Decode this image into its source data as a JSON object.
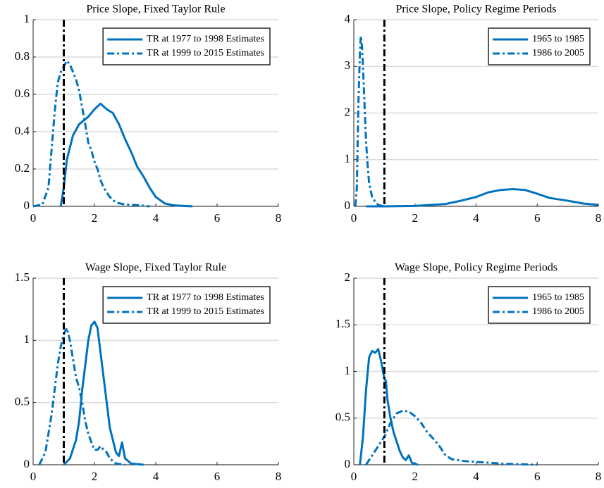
{
  "chart_data": [
    {
      "type": "line",
      "title": "Price Slope, Fixed Taylor Rule",
      "xlim": [
        0,
        8
      ],
      "xticks": [
        0,
        2,
        4,
        6,
        8
      ],
      "ylim": [
        0,
        1
      ],
      "yticks": [
        0,
        0.2,
        0.4,
        0.6,
        0.8,
        1
      ],
      "grid": "y",
      "legend": "upper right",
      "vline": 1,
      "vline_color": "#000000",
      "series": [
        {
          "name": "TR at 1977 to 1998 Estimates",
          "color": "#0072bd",
          "dash": "solid",
          "x": [
            0.9,
            1.0,
            1.1,
            1.3,
            1.5,
            1.8,
            2.0,
            2.2,
            2.4,
            2.6,
            2.8,
            3.0,
            3.2,
            3.4,
            3.6,
            3.8,
            4.0,
            4.3,
            4.6,
            5.2
          ],
          "values": [
            0,
            0.1,
            0.25,
            0.38,
            0.44,
            0.48,
            0.52,
            0.55,
            0.52,
            0.5,
            0.44,
            0.36,
            0.29,
            0.21,
            0.16,
            0.1,
            0.05,
            0.015,
            0.005,
            0
          ]
        },
        {
          "name": "TR at 1999 to 2015 Estimates",
          "color": "#0072bd",
          "dash": "dashdot",
          "x": [
            0,
            0.3,
            0.5,
            0.6,
            0.7,
            0.8,
            0.9,
            1.0,
            1.1,
            1.2,
            1.3,
            1.4,
            1.5,
            1.6,
            1.7,
            1.8,
            1.9,
            2.0,
            2.1,
            2.2,
            2.3,
            2.5,
            2.7,
            3.0,
            3.5,
            3.8
          ],
          "values": [
            0,
            0.01,
            0.1,
            0.3,
            0.5,
            0.66,
            0.72,
            0.75,
            0.78,
            0.76,
            0.72,
            0.68,
            0.62,
            0.53,
            0.44,
            0.34,
            0.3,
            0.24,
            0.2,
            0.14,
            0.1,
            0.05,
            0.02,
            0.01,
            0.005,
            0
          ]
        }
      ]
    },
    {
      "type": "line",
      "title": "Price Slope, Policy Regime Periods",
      "xlim": [
        0,
        8
      ],
      "xticks": [
        0,
        2,
        4,
        6,
        8
      ],
      "ylim": [
        0,
        4
      ],
      "yticks": [
        0,
        1,
        2,
        3,
        4
      ],
      "grid": "y",
      "legend": "upper right",
      "vline": 1,
      "vline_color": "#000000",
      "series": [
        {
          "name": "1965 to 1985",
          "color": "#0072bd",
          "dash": "solid",
          "x": [
            0.4,
            1,
            2,
            3,
            3.5,
            4,
            4.4,
            4.8,
            5.2,
            5.6,
            6,
            6.4,
            7,
            7.5,
            8
          ],
          "values": [
            0,
            0,
            0.01,
            0.05,
            0.12,
            0.2,
            0.3,
            0.35,
            0.37,
            0.35,
            0.27,
            0.18,
            0.12,
            0.06,
            0.03
          ]
        },
        {
          "name": "1986 to 2005",
          "color": "#0072bd",
          "dash": "dashdot",
          "x": [
            0.05,
            0.1,
            0.15,
            0.2,
            0.23,
            0.27,
            0.3,
            0.35,
            0.4,
            0.45,
            0.5,
            0.6,
            0.7,
            0.8,
            1.0
          ],
          "values": [
            0,
            0.4,
            2.2,
            3.3,
            3.65,
            3.4,
            3.0,
            2.2,
            1.4,
            0.9,
            0.5,
            0.2,
            0.1,
            0.03,
            0
          ]
        }
      ]
    },
    {
      "type": "line",
      "title": "Wage Slope, Fixed Taylor Rule",
      "xlim": [
        0,
        8
      ],
      "xticks": [
        0,
        2,
        4,
        6,
        8
      ],
      "ylim": [
        0,
        1.5
      ],
      "yticks": [
        0,
        0.5,
        1,
        1.5
      ],
      "grid": "y",
      "legend": "upper right",
      "vline": 1,
      "vline_color": "#000000",
      "series": [
        {
          "name": "TR at 1977 to 1998 Estimates",
          "color": "#0072bd",
          "dash": "solid",
          "x": [
            1.0,
            1.2,
            1.4,
            1.5,
            1.6,
            1.7,
            1.8,
            1.9,
            2.0,
            2.1,
            2.2,
            2.3,
            2.4,
            2.5,
            2.6,
            2.7,
            2.8,
            2.9,
            3.0,
            3.2,
            3.6
          ],
          "values": [
            0,
            0.05,
            0.2,
            0.35,
            0.6,
            0.8,
            1.0,
            1.12,
            1.15,
            1.1,
            0.9,
            0.7,
            0.5,
            0.3,
            0.2,
            0.1,
            0.07,
            0.18,
            0.05,
            0.01,
            0
          ]
        },
        {
          "name": "TR at 1999 to 2015 Estimates",
          "color": "#0072bd",
          "dash": "dashdot",
          "x": [
            0.2,
            0.4,
            0.6,
            0.8,
            0.9,
            1.0,
            1.1,
            1.2,
            1.3,
            1.4,
            1.5,
            1.6,
            1.7,
            1.8,
            1.9,
            2.0,
            2.1,
            2.2,
            2.3,
            2.4,
            2.5,
            2.7,
            3.0
          ],
          "values": [
            0,
            0.1,
            0.4,
            0.8,
            0.95,
            1.05,
            1.1,
            1.0,
            0.85,
            0.7,
            0.62,
            0.5,
            0.35,
            0.25,
            0.18,
            0.12,
            0.12,
            0.15,
            0.12,
            0.1,
            0.05,
            0.01,
            0
          ]
        }
      ]
    },
    {
      "type": "line",
      "title": "Wage Slope, Policy Regime Periods",
      "xlim": [
        0,
        8
      ],
      "xticks": [
        0,
        2,
        4,
        6,
        8
      ],
      "ylim": [
        0,
        2
      ],
      "yticks": [
        0,
        0.5,
        1,
        1.5,
        2
      ],
      "grid": "y",
      "legend": "upper right",
      "vline": 1,
      "vline_color": "#000000",
      "series": [
        {
          "name": "1965 to 1985",
          "color": "#0072bd",
          "dash": "solid",
          "x": [
            0.2,
            0.3,
            0.4,
            0.5,
            0.6,
            0.7,
            0.8,
            0.9,
            1.0,
            1.05,
            1.1,
            1.2,
            1.3,
            1.4,
            1.5,
            1.6,
            1.7,
            1.8,
            1.9,
            2.1
          ],
          "values": [
            0,
            0.3,
            0.8,
            1.15,
            1.22,
            1.2,
            1.24,
            1.1,
            0.92,
            0.9,
            0.7,
            0.5,
            0.35,
            0.25,
            0.15,
            0.08,
            0.05,
            0.1,
            0.02,
            0
          ]
        },
        {
          "name": "1986 to 2005",
          "color": "#0072bd",
          "dash": "dashdot",
          "x": [
            0.4,
            0.6,
            0.8,
            1.0,
            1.2,
            1.4,
            1.6,
            1.8,
            2.0,
            2.2,
            2.4,
            2.6,
            2.8,
            3.0,
            3.2,
            3.6,
            4.0,
            4.5,
            5,
            6
          ],
          "values": [
            0,
            0.1,
            0.2,
            0.3,
            0.45,
            0.55,
            0.58,
            0.57,
            0.52,
            0.45,
            0.35,
            0.28,
            0.2,
            0.1,
            0.06,
            0.04,
            0.03,
            0.02,
            0.01,
            0
          ]
        }
      ]
    }
  ]
}
